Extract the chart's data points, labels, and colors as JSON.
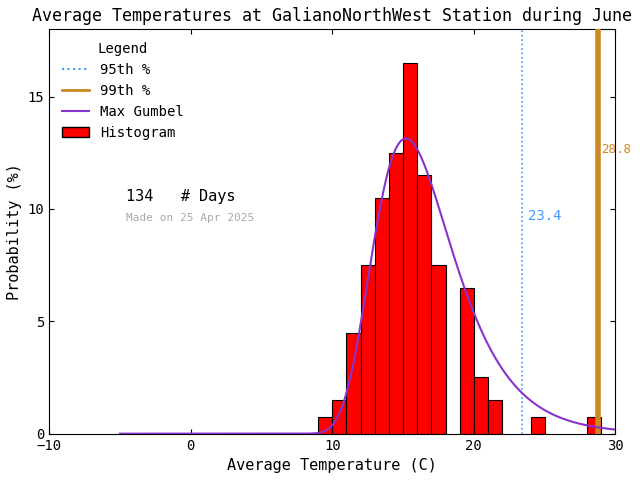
{
  "title": "Average Temperatures at GalianoNorthWest Station during June",
  "xlabel": "Average Temperature (C)",
  "ylabel": "Probability (%)",
  "xlim": [
    -10,
    30
  ],
  "ylim": [
    0,
    18
  ],
  "yticks": [
    0,
    5,
    10,
    15
  ],
  "xticks": [
    -10,
    0,
    10,
    20,
    30
  ],
  "n_days": 134,
  "perc_95": 23.4,
  "perc_99": 28.8,
  "hist_left_edges": [
    9,
    10,
    11,
    12,
    13,
    14,
    15,
    16,
    17,
    18,
    19,
    20,
    21,
    22,
    23,
    24,
    25,
    26,
    27,
    28
  ],
  "hist_values": [
    0.75,
    1.5,
    4.5,
    7.5,
    10.5,
    12.5,
    16.5,
    11.5,
    7.5,
    0.0,
    6.5,
    2.5,
    1.5,
    0.0,
    0.0,
    0.75,
    0.0,
    0.0,
    0.0,
    0.75
  ],
  "gumbel_mu": 15.2,
  "gumbel_beta": 2.8,
  "gumbel_scale": 100,
  "bar_color": "#ff0000",
  "bar_edge_color": "#000000",
  "gumbel_color": "#8833cc",
  "perc95_line_color": "#4499ff",
  "perc95_text_color": "#4499ff",
  "perc99_color": "#cc8822",
  "date_label": "Made on 25 Apr 2025",
  "date_color": "#aaaaaa",
  "title_fontsize": 12,
  "axis_fontsize": 11,
  "legend_fontsize": 10,
  "tick_fontsize": 10,
  "fig_width": 6.4,
  "fig_height": 4.8,
  "fig_dpi": 100
}
